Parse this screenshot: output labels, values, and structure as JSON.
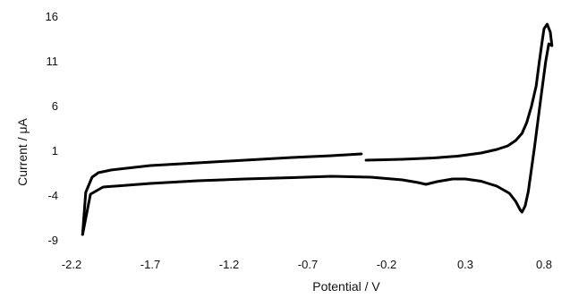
{
  "chart_data": {
    "type": "line",
    "title": "",
    "xlabel": "Potential / V",
    "ylabel": "Current / μA",
    "xlim": [
      -2.2,
      0.9
    ],
    "ylim": [
      -9,
      16
    ],
    "x_ticks": [
      -2.2,
      -1.7,
      -1.2,
      -0.7,
      -0.2,
      0.3,
      0.8
    ],
    "y_ticks": [
      16,
      11,
      6,
      1,
      -4,
      -9
    ],
    "x_tick_labels": [
      "-2.2",
      "-1.7",
      "-1.2",
      "-0.7",
      "-0.2",
      "0.3",
      "0.8"
    ],
    "y_tick_labels": [
      "16",
      "11",
      "6",
      "1",
      "-4",
      "-9"
    ],
    "grid": false,
    "legend": "none",
    "line_color": "#000000",
    "series": [
      {
        "segment": "upper",
        "x": [
          -0.36,
          -0.55,
          -0.8,
          -1.1,
          -1.4,
          -1.7,
          -1.95,
          -2.03,
          -2.07,
          -2.11,
          -2.13
        ],
        "y": [
          0.7,
          0.5,
          0.3,
          0.0,
          -0.3,
          -0.6,
          -1.1,
          -1.4,
          -1.9,
          -3.6,
          -8.3
        ]
      },
      {
        "segment": "lower",
        "x": [
          -2.13,
          -2.08,
          -2.0,
          -1.7,
          -1.4,
          -1.1,
          -0.8,
          -0.55,
          -0.3,
          -0.1,
          0.0,
          0.05,
          0.12,
          0.22,
          0.3,
          0.4,
          0.5,
          0.58,
          0.62,
          0.65,
          0.66,
          0.68,
          0.7,
          0.74,
          0.78,
          0.81,
          0.83,
          0.85,
          0.84,
          0.82,
          0.8,
          0.79
        ],
        "y": [
          -8.3,
          -3.8,
          -3.0,
          -2.6,
          -2.3,
          -2.1,
          -1.95,
          -1.8,
          -1.9,
          -2.2,
          -2.5,
          -2.7,
          -2.4,
          -2.1,
          -2.1,
          -2.35,
          -2.9,
          -3.7,
          -4.6,
          -5.6,
          -5.8,
          -5.1,
          -3.5,
          1.5,
          7.0,
          11.0,
          13.0,
          12.8,
          14.3,
          15.2,
          14.7,
          13.5
        ]
      },
      {
        "segment": "rise",
        "x": [
          -0.33,
          -0.1,
          0.1,
          0.25,
          0.4,
          0.5,
          0.57,
          0.62,
          0.66,
          0.69,
          0.72,
          0.75,
          0.77,
          0.79
        ],
        "y": [
          0.0,
          0.1,
          0.25,
          0.45,
          0.8,
          1.2,
          1.6,
          2.2,
          3.0,
          4.2,
          6.0,
          8.3,
          11.0,
          13.5
        ]
      }
    ]
  }
}
